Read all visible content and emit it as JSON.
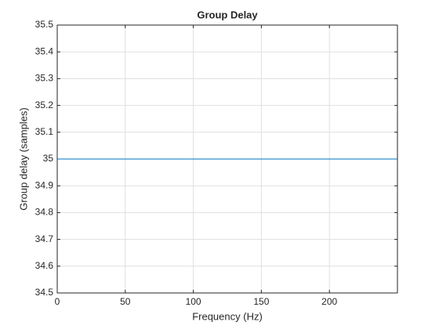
{
  "chart_data": {
    "type": "line",
    "title": "Group Delay",
    "x_label": "Frequency (Hz)",
    "y_label": "Group delay (samples)",
    "x": [
      0,
      250
    ],
    "series": [
      {
        "color": "#0072bd",
        "values": [
          35,
          35
        ]
      }
    ],
    "xlim": [
      0,
      250
    ],
    "xticks": [
      0,
      50,
      100,
      150,
      200
    ],
    "ylim": [
      34.5,
      35.5
    ],
    "yticks": [
      34.5,
      34.6,
      34.7,
      34.8,
      34.9,
      35,
      35.1,
      35.2,
      35.3,
      35.4,
      35.5
    ],
    "grid": true
  }
}
